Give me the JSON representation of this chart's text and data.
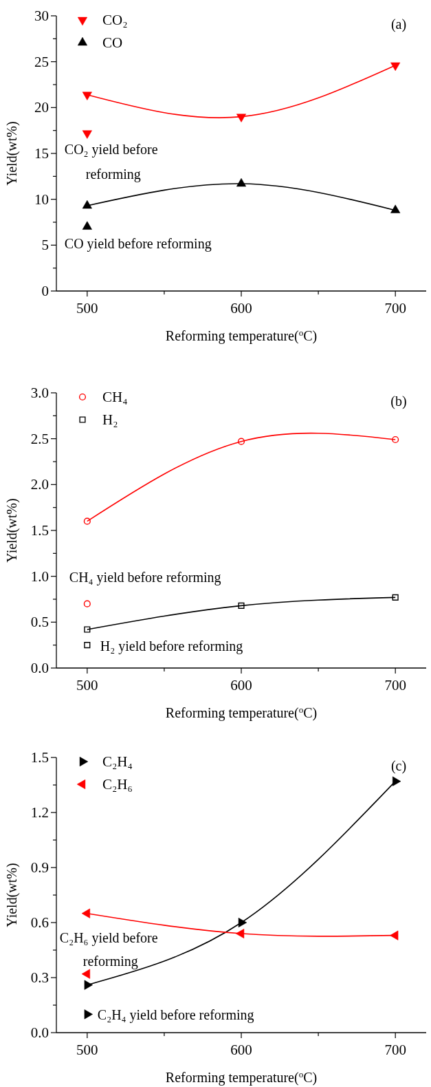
{
  "chart_data": [
    {
      "type": "line",
      "title": "(a)",
      "xlabel": "Reforming temperature($^{o}$C)",
      "ylabel": "Yield(wt%)",
      "x": [
        500,
        600,
        700
      ],
      "xlim": [
        480,
        720
      ],
      "xticks": [
        500,
        600,
        700
      ],
      "ylim": [
        0,
        30
      ],
      "yticks": [
        0,
        5,
        10,
        15,
        20,
        25,
        30
      ],
      "legend": "top left",
      "line_style": "solid",
      "series": [
        {
          "name": "CO₂",
          "color": "#ff0000",
          "values": [
            21.4,
            19.0,
            24.6
          ],
          "marker": "triangle-down"
        },
        {
          "name": "CO",
          "color": "#000000",
          "values": [
            9.3,
            11.7,
            8.8
          ],
          "marker": "triangle"
        },
        {
          "type": "scatter",
          "color": "#ff0000",
          "values": [
            17.2,
            null,
            null
          ],
          "marker": "triangle-down"
        },
        {
          "type": "scatter",
          "color": "#000000",
          "values": [
            7.0,
            null,
            null
          ],
          "marker": "triangle"
        }
      ],
      "annotations": [
        "CO₂ yield before reforming",
        "CO yield before reforming"
      ]
    },
    {
      "type": "line",
      "title": "(b)",
      "xlabel": "Reforming temperature($^{o}$C)",
      "ylabel": "Yield(wt%)",
      "x": [
        500,
        600,
        700
      ],
      "xlim": [
        480,
        720
      ],
      "xticks": [
        500,
        600,
        700
      ],
      "ylim": [
        0,
        3
      ],
      "yticks": [
        {
          "value": 0,
          "label": "0.0"
        },
        0.5,
        {
          "value": 1,
          "label": "1.0"
        },
        1.5,
        {
          "value": 2,
          "label": "2.0"
        },
        2.5,
        {
          "value": 3,
          "label": "3.0"
        }
      ],
      "legend": "top left",
      "line_style": "solid",
      "series": [
        {
          "name": "CH₄",
          "color": "#ff0000",
          "values": [
            1.6,
            2.47,
            2.49
          ],
          "marker": "circle"
        },
        {
          "name": "H₂",
          "color": "#000000",
          "values": [
            0.42,
            0.68,
            0.77
          ],
          "marker": "square"
        },
        {
          "type": "scatter",
          "color": "#ff0000",
          "values": [
            0.7,
            null,
            null
          ],
          "marker": "circle"
        },
        {
          "type": "scatter",
          "color": "#000000",
          "values": [
            0.25,
            null,
            null
          ],
          "marker": "square"
        }
      ],
      "annotations": [
        "CH₄ yield before reforming",
        "H₂ yield before reforming"
      ]
    },
    {
      "type": "line",
      "title": "(c)",
      "xlabel": "Reforming temperature($^{o}$C)",
      "ylabel": "Yield(wt%)",
      "x": [
        500,
        600,
        700
      ],
      "xlim": [
        480,
        720
      ],
      "xticks": [
        500,
        600,
        700
      ],
      "ylim": [
        0,
        1.5
      ],
      "yticks": [
        {
          "value": 0,
          "label": "0.0"
        },
        0.3,
        0.6,
        0.9,
        1.2,
        1.5
      ],
      "legend": "top left",
      "line_style": "solid",
      "series": [
        {
          "name": "C₂H₄",
          "color": "#000000",
          "values": [
            0.26,
            0.6,
            1.37
          ],
          "marker": "triangle-right"
        },
        {
          "name": "C₂H₆",
          "color": "#ff0000",
          "values": [
            0.65,
            0.54,
            0.53
          ],
          "marker": "triangle-left"
        },
        {
          "type": "scatter",
          "color": "#ff0000",
          "values": [
            0.32,
            null,
            null
          ],
          "marker": "triangle-left"
        },
        {
          "type": "scatter",
          "color": "#000000",
          "values": [
            0.1,
            null,
            null
          ],
          "marker": "triangle-right"
        }
      ],
      "annotations": [
        "C₂H₆ yield before reforming",
        "C₂H₄ yield before reforming"
      ]
    }
  ]
}
